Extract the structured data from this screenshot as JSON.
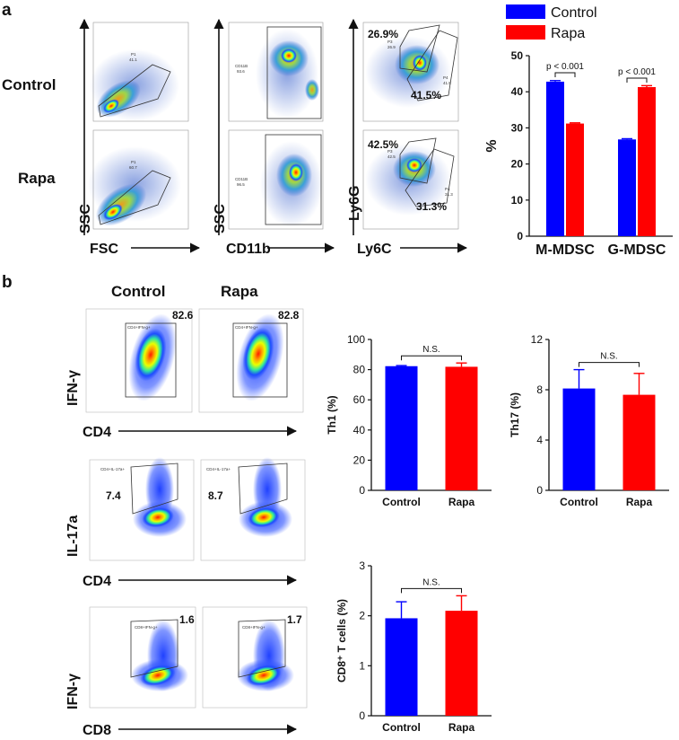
{
  "panels": {
    "a": "a",
    "b": "b"
  },
  "row_labels": {
    "control": "Control",
    "rapa": "Rapa"
  },
  "col_labels": {
    "control": "Control",
    "rapa": "Rapa"
  },
  "flow_a": {
    "axis": {
      "fsc": "FSC",
      "ssc1": "SSC",
      "cd11b": "CD11b",
      "ssc2": "SSC",
      "ly6c": "Ly6C",
      "ly6g": "Ly6G"
    },
    "gates": {
      "p1_ctrl": "P1",
      "p1_ctrl_val": "41.1",
      "p1_rapa": "P1",
      "p1_rapa_val": "60.7",
      "cd11b_ctrl": "CD11B",
      "cd11b_ctrl_val": "93.6",
      "cd11b_rapa": "CD11B",
      "cd11b_rapa_val": "96.5",
      "p3_ctrl": "P3",
      "p3_ctrl_val": "26.9",
      "p4_ctrl": "P4",
      "p4_ctrl_val": "41.5",
      "p3_rapa": "P3",
      "p3_rapa_val": "42.5",
      "p4_rapa": "P4",
      "p4_rapa_val": "31.3"
    },
    "pct": {
      "ctrl_g": "26.9%",
      "ctrl_m": "41.5%",
      "rapa_g": "42.5%",
      "rapa_m": "31.3%"
    }
  },
  "flow_b": {
    "axis": {
      "ifng1": "IFN-γ",
      "cd4_1": "CD4",
      "il17a": "IL-17a",
      "cd4_2": "CD4",
      "ifng2": "IFN-γ",
      "cd8": "CD8"
    },
    "gates": {
      "th1": "CD4+IFN-g+",
      "th17": "CD4+IL-17a+",
      "cd8": "CD8+IFN-g+"
    },
    "pct": {
      "th1_ctrl": "82.6",
      "th1_rapa": "82.8",
      "th17_ctrl": "7.4",
      "th17_rapa": "8.7",
      "cd8_ctrl": "1.6",
      "cd8_rapa": "1.7"
    }
  },
  "colors": {
    "control": "#0000ff",
    "rapa": "#ff0000"
  },
  "chart_data": [
    {
      "id": "mdsc",
      "type": "bar",
      "title": "",
      "categories": [
        "M-MDSC",
        "G-MDSC"
      ],
      "series": [
        {
          "name": "Control",
          "values": [
            42.8,
            26.8
          ],
          "errors": [
            0.3,
            0.2
          ]
        },
        {
          "name": "Rapa",
          "values": [
            31.2,
            41.3
          ],
          "errors": [
            0.2,
            0.4
          ]
        }
      ],
      "ylabel": "%",
      "ylim": [
        0,
        50
      ],
      "yticks": [
        "0",
        "10",
        "20",
        "30",
        "40",
        "50"
      ],
      "legend": "top-left",
      "legend_entries": [
        "Control",
        "Rapa"
      ],
      "annotations": [
        "p < 0.001",
        "p < 0.001"
      ]
    },
    {
      "id": "th1",
      "type": "bar",
      "categories": [
        "Control",
        "Rapa"
      ],
      "values": [
        82.3,
        81.9
      ],
      "errors": [
        0.4,
        2.5
      ],
      "ylabel": "Th1 (%)",
      "ylim": [
        0,
        100
      ],
      "yticks": [
        "0",
        "20",
        "40",
        "60",
        "80",
        "100"
      ],
      "annotations": [
        "N.S."
      ]
    },
    {
      "id": "th17",
      "type": "bar",
      "categories": [
        "Control",
        "Rapa"
      ],
      "values": [
        8.1,
        7.6
      ],
      "errors": [
        1.5,
        1.7
      ],
      "ylabel": "Th17 (%)",
      "ylim": [
        0,
        12
      ],
      "yticks": [
        "0",
        "4",
        "8",
        "12"
      ],
      "annotations": [
        "N.S."
      ]
    },
    {
      "id": "cd8",
      "type": "bar",
      "categories": [
        "Control",
        "Rapa"
      ],
      "values": [
        1.95,
        2.1
      ],
      "errors": [
        0.33,
        0.3
      ],
      "ylabel": "CD8⁺ T cells (%)",
      "ylim": [
        0,
        3
      ],
      "yticks": [
        "0",
        "1",
        "2",
        "3"
      ],
      "annotations": [
        "N.S."
      ]
    }
  ]
}
